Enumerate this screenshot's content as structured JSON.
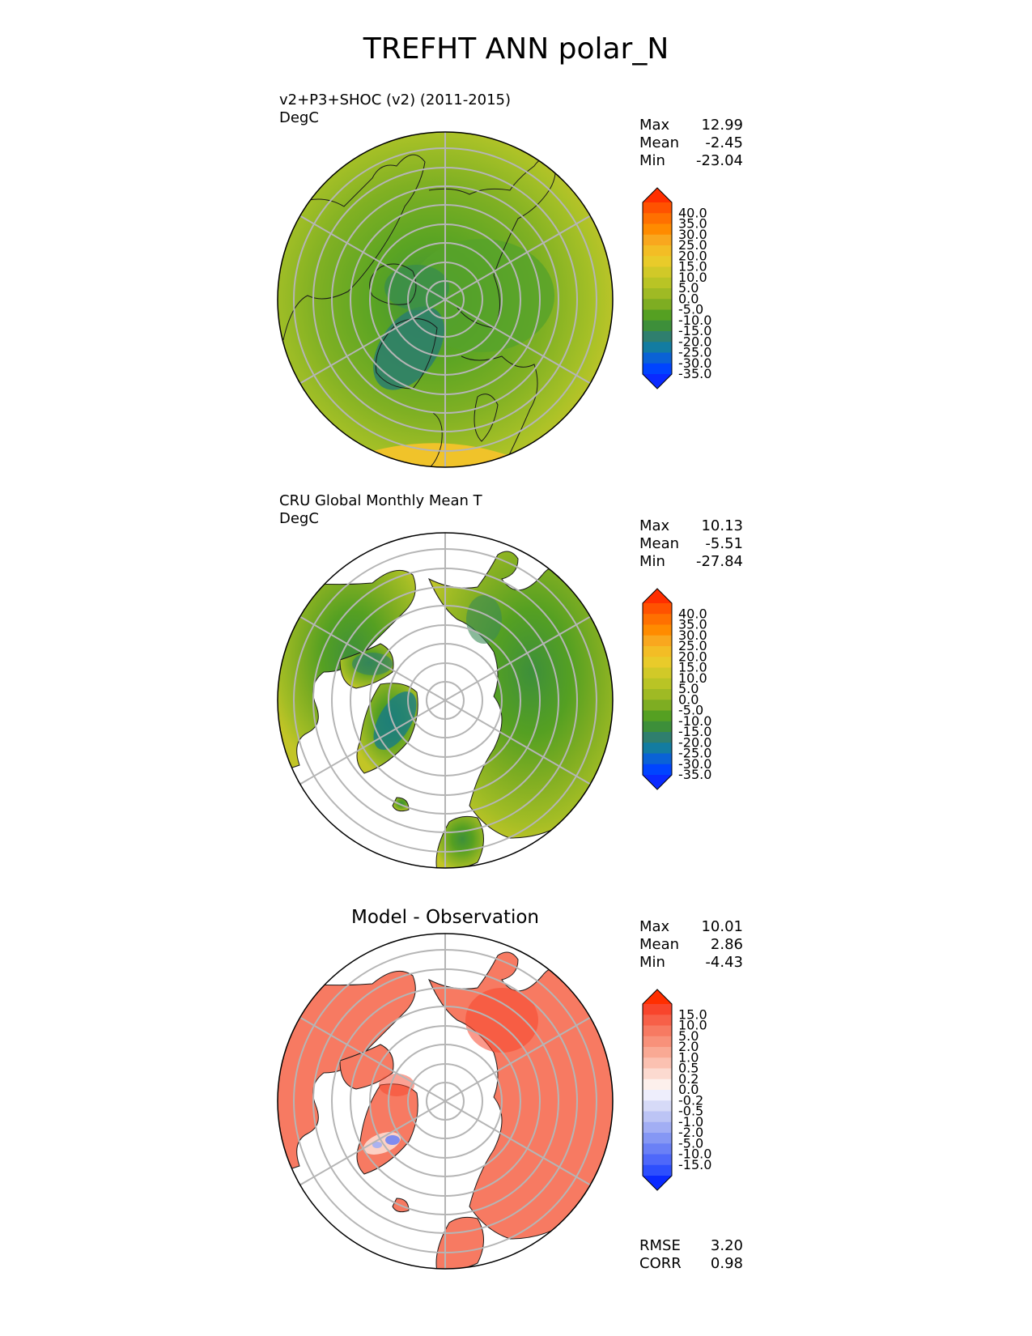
{
  "title": "TREFHT ANN polar_N",
  "panels": [
    {
      "id": "test",
      "title_lines": [
        "v2+P3+SHOC (v2) (2011-2015)",
        "DegC"
      ],
      "centered_title": "",
      "stats": [
        {
          "label": "Max",
          "value": "12.99"
        },
        {
          "label": "Mean",
          "value": "-2.45"
        },
        {
          "label": "Min",
          "value": "-23.04"
        }
      ],
      "colorbar": {
        "ticks": [
          "40.0",
          "35.0",
          "30.0",
          "25.0",
          "20.0",
          "15.0",
          "10.0",
          "5.0",
          "0.0",
          "-5.0",
          "-10.0",
          "-15.0",
          "-20.0",
          "-25.0",
          "-30.0",
          "-35.0"
        ],
        "colors": [
          "#ff2f00",
          "#ff5200",
          "#ff7000",
          "#ff8b00",
          "#f9a71e",
          "#f3bd25",
          "#e9cb2a",
          "#d1c928",
          "#b9c425",
          "#9fba24",
          "#7ead22",
          "#55a022",
          "#3d8f3a",
          "#2f7f6e",
          "#137ca1",
          "#0a62d6",
          "#0044ff",
          "#0a2aff"
        ]
      },
      "footer": []
    },
    {
      "id": "reference",
      "title_lines": [
        "CRU Global Monthly Mean T",
        "DegC"
      ],
      "centered_title": "",
      "stats": [
        {
          "label": "Max",
          "value": "10.13"
        },
        {
          "label": "Mean",
          "value": "-5.51"
        },
        {
          "label": "Min",
          "value": "-27.84"
        }
      ],
      "colorbar": {
        "ticks": [
          "40.0",
          "35.0",
          "30.0",
          "25.0",
          "20.0",
          "15.0",
          "10.0",
          "5.0",
          "0.0",
          "-5.0",
          "-10.0",
          "-15.0",
          "-20.0",
          "-25.0",
          "-30.0",
          "-35.0"
        ],
        "colors": [
          "#ff2f00",
          "#ff5200",
          "#ff7000",
          "#ff8b00",
          "#f9a71e",
          "#f3bd25",
          "#e9cb2a",
          "#d1c928",
          "#b9c425",
          "#9fba24",
          "#7ead22",
          "#55a022",
          "#3d8f3a",
          "#2f7f6e",
          "#137ca1",
          "#0a62d6",
          "#0044ff",
          "#0a2aff"
        ]
      },
      "footer": []
    },
    {
      "id": "diff",
      "title_lines": [],
      "centered_title": "Model - Observation",
      "stats": [
        {
          "label": "Max",
          "value": "10.01"
        },
        {
          "label": "Mean",
          "value": "2.86"
        },
        {
          "label": "Min",
          "value": "-4.43"
        }
      ],
      "colorbar": {
        "ticks": [
          "15.0",
          "10.0",
          "5.0",
          "2.0",
          "1.0",
          "0.5",
          "0.2",
          "0.0",
          "-0.2",
          "-0.5",
          "-1.0",
          "-2.0",
          "-5.0",
          "-10.0",
          "-15.0"
        ],
        "colors": [
          "#ff2f00",
          "#f8452c",
          "#f76048",
          "#f77a62",
          "#f8917a",
          "#f9a994",
          "#fbc1b1",
          "#fcdad0",
          "#fdf0ec",
          "#eeeefc",
          "#d6daf7",
          "#bcc4f5",
          "#a2aef4",
          "#8597f4",
          "#6a80f6",
          "#4e68fa",
          "#2d4ffd",
          "#0a2aff"
        ]
      },
      "footer": [
        {
          "label": "RMSE",
          "value": "3.20"
        },
        {
          "label": "CORR",
          "value": "0.98"
        }
      ]
    }
  ]
}
